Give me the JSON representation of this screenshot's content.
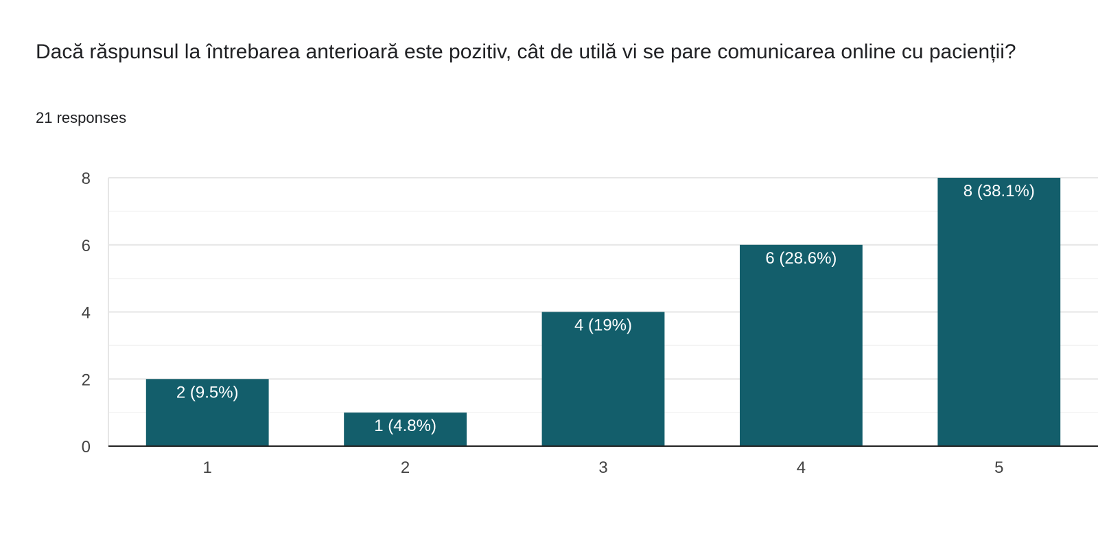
{
  "question": {
    "title": "Dacă răspunsul la întrebarea anterioară este pozitiv, cât de utilă vi se pare comunicarea online cu pacienții?",
    "responses": "21 responses"
  },
  "colors": {
    "bar": "#135e6b",
    "grid_major": "#e6e6e6",
    "grid_minor": "#f3f3f3",
    "axis": "#222222"
  },
  "chart_data": {
    "type": "bar",
    "categories": [
      "1",
      "2",
      "3",
      "4",
      "5"
    ],
    "values": [
      2,
      1,
      4,
      6,
      8
    ],
    "data_labels": [
      "2 (9.5%)",
      "1 (4.8%)",
      "4 (19%)",
      "6 (28.6%)",
      "8 (38.1%)"
    ],
    "yticks": [
      "0",
      "2",
      "4",
      "6",
      "8"
    ],
    "ylim": [
      0,
      8
    ],
    "grid": true,
    "legend": "none"
  }
}
